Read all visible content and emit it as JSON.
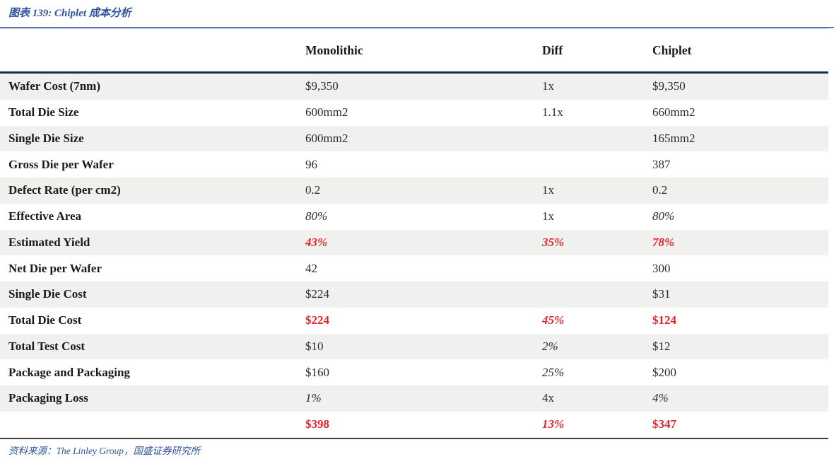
{
  "chart_data": {
    "type": "table",
    "title": "图表 139:  Chiplet 成本分析",
    "source": "资料来源：The Linley Group，国盛证券研究所",
    "columns": [
      "",
      "Monolithic",
      "Diff",
      "Chiplet"
    ],
    "style_legend": {
      "n": "normal",
      "i": "italic",
      "r": "red-bold",
      "ri": "red-bold-italic"
    },
    "rows": [
      {
        "label": "Wafer Cost (7nm)",
        "cells": [
          {
            "t": "$9,350",
            "s": "n"
          },
          {
            "t": "1x",
            "s": "n"
          },
          {
            "t": "$9,350",
            "s": "n"
          }
        ]
      },
      {
        "label": "Total Die Size",
        "cells": [
          {
            "t": "600mm2",
            "s": "n"
          },
          {
            "t": "1.1x",
            "s": "n"
          },
          {
            "t": "660mm2",
            "s": "n"
          }
        ]
      },
      {
        "label": "Single Die Size",
        "cells": [
          {
            "t": "600mm2",
            "s": "n"
          },
          {
            "t": "",
            "s": "n"
          },
          {
            "t": "165mm2",
            "s": "n"
          }
        ]
      },
      {
        "label": "Gross Die per Wafer",
        "cells": [
          {
            "t": "96",
            "s": "n"
          },
          {
            "t": "",
            "s": "n"
          },
          {
            "t": "387",
            "s": "n"
          }
        ]
      },
      {
        "label": "Defect Rate (per cm2)",
        "cells": [
          {
            "t": "0.2",
            "s": "n"
          },
          {
            "t": "1x",
            "s": "n"
          },
          {
            "t": "0.2",
            "s": "n"
          }
        ]
      },
      {
        "label": "Effective Area",
        "cells": [
          {
            "t": "80%",
            "s": "i"
          },
          {
            "t": "1x",
            "s": "n"
          },
          {
            "t": "80%",
            "s": "i"
          }
        ]
      },
      {
        "label": "Estimated Yield",
        "cells": [
          {
            "t": "43%",
            "s": "ri"
          },
          {
            "t": "35%",
            "s": "ri"
          },
          {
            "t": "78%",
            "s": "ri"
          }
        ]
      },
      {
        "label": "Net Die per Wafer",
        "cells": [
          {
            "t": "42",
            "s": "n"
          },
          {
            "t": "",
            "s": "n"
          },
          {
            "t": "300",
            "s": "n"
          }
        ]
      },
      {
        "label": "Single Die Cost",
        "cells": [
          {
            "t": "$224",
            "s": "n"
          },
          {
            "t": "",
            "s": "n"
          },
          {
            "t": "$31",
            "s": "n"
          }
        ]
      },
      {
        "label": "Total Die Cost",
        "cells": [
          {
            "t": "$224",
            "s": "r"
          },
          {
            "t": "45%",
            "s": "ri"
          },
          {
            "t": "$124",
            "s": "r"
          }
        ]
      },
      {
        "label": "Total Test Cost",
        "cells": [
          {
            "t": "$10",
            "s": "n"
          },
          {
            "t": "2%",
            "s": "i"
          },
          {
            "t": "$12",
            "s": "n"
          }
        ]
      },
      {
        "label": "Package and Packaging",
        "cells": [
          {
            "t": "$160",
            "s": "n"
          },
          {
            "t": "25%",
            "s": "i"
          },
          {
            "t": "$200",
            "s": "n"
          }
        ]
      },
      {
        "label": "Packaging Loss",
        "cells": [
          {
            "t": "1%",
            "s": "i"
          },
          {
            "t": "4x",
            "s": "n"
          },
          {
            "t": "4%",
            "s": "i"
          }
        ]
      },
      {
        "label": "",
        "cells": [
          {
            "t": "$398",
            "s": "r"
          },
          {
            "t": "13%",
            "s": "ri"
          },
          {
            "t": "$347",
            "s": "r"
          }
        ]
      }
    ]
  },
  "colors": {
    "title-blue": "#30549c",
    "rule-blue": "#4f7ab3",
    "header-rule": "#1c2e49",
    "header-rule-light": "#a9bdd6",
    "stripe": "#f0f0ee",
    "red": "#e2252a",
    "text-dark": "#1a1a1a",
    "text-value": "#2b2b2b",
    "footer-rule": "#3f3f3f"
  }
}
